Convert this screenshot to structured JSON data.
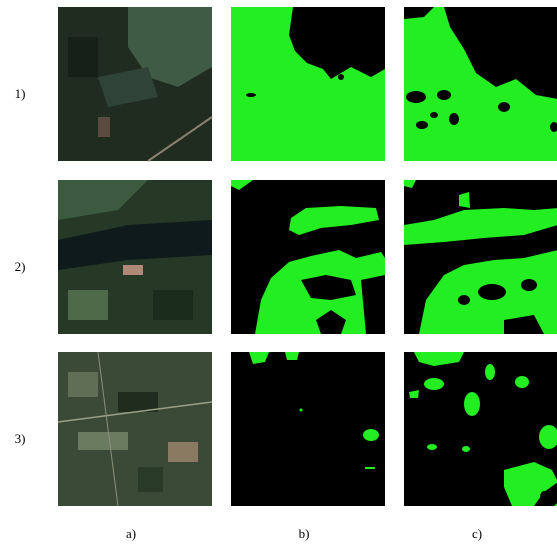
{
  "rows": [
    {
      "label": "1)"
    },
    {
      "label": "2)"
    },
    {
      "label": "3)"
    }
  ],
  "columns": [
    {
      "label": "a)"
    },
    {
      "label": "b)"
    },
    {
      "label": "c)"
    }
  ]
}
